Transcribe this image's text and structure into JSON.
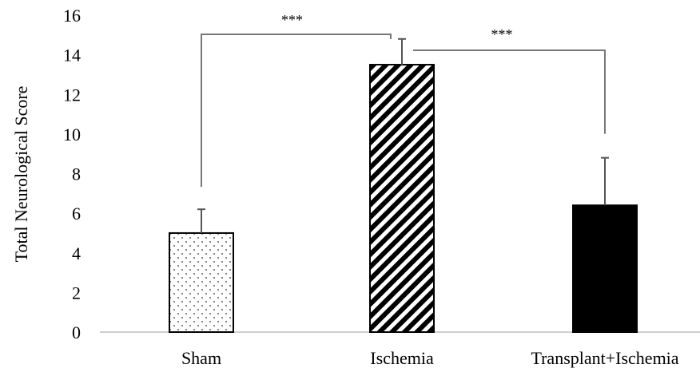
{
  "chart_data": {
    "type": "bar",
    "ylabel": "Total Neurological Score",
    "ylim": [
      0,
      16
    ],
    "yticks": [
      0,
      2,
      4,
      6,
      8,
      10,
      12,
      14,
      16
    ],
    "categories": [
      "Sham",
      "Ischemia",
      "Transplant+Ischemia"
    ],
    "values": [
      5.0,
      13.5,
      6.4
    ],
    "error_plus": [
      1.2,
      1.3,
      2.4
    ],
    "patterns": [
      "dots",
      "diagonal-stripes",
      "solid"
    ],
    "grid": false,
    "significance": [
      {
        "from": "Sham",
        "to": "Ischemia",
        "label": "***"
      },
      {
        "from": "Ischemia",
        "to": "Transplant+Ischemia",
        "label": "***"
      }
    ]
  }
}
